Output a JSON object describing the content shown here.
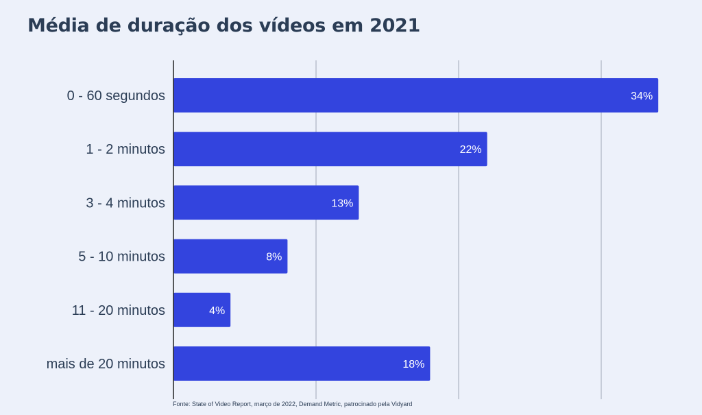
{
  "title": "Média de duração dos vídeos em 2021",
  "source": "Fonte: State of Video Report, março de 2022, Demand Metric, patrocinado pela Vidyard",
  "colors": {
    "background": "#edf1fa",
    "bar": "#3344de",
    "title": "#2b3d55",
    "label": "#2b3d55",
    "grid": "#b9c0cc",
    "axis": "#222222"
  },
  "chart_data": {
    "type": "bar",
    "orientation": "horizontal",
    "title": "Média de duração dos vídeos em 2021",
    "categories": [
      "0 - 60 segundos",
      "1 - 2 minutos",
      "3 - 4 minutos",
      "5 - 10 minutos",
      "11 - 20 minutos",
      "mais de 20 minutos"
    ],
    "values": [
      34,
      22,
      13,
      8,
      4,
      18
    ],
    "value_labels": [
      "34%",
      "22%",
      "13%",
      "8%",
      "4%",
      "18%"
    ],
    "unit": "%",
    "xlim": [
      0,
      40
    ],
    "gridlines": [
      10,
      20,
      30
    ],
    "grid": true,
    "legend": "none"
  }
}
